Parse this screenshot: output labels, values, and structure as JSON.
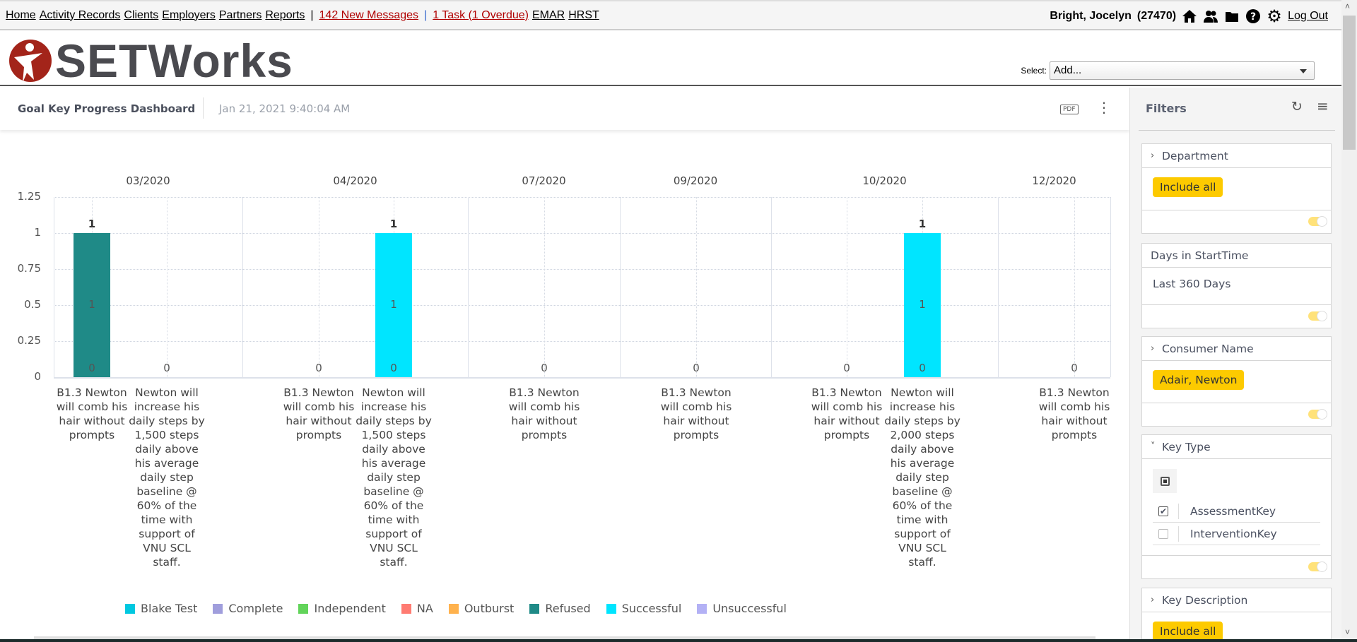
{
  "nav": {
    "links": [
      "Home",
      "Activity Records",
      "Clients",
      "Employers",
      "Partners",
      "Reports"
    ],
    "messages": "142 New Messages",
    "tasks": "1 Task (1 Overdue)",
    "extra_links": [
      "EMAR",
      "HRST"
    ],
    "user": "Bright, Jocelyn",
    "user_id": "(27470)",
    "logout": "Log Out"
  },
  "logo": {
    "text": "SETWorks"
  },
  "select": {
    "label": "Select:",
    "value": "Add..."
  },
  "dashboard": {
    "title": "Goal Key Progress Dashboard",
    "timestamp": "Jan 21, 2021 9:40:04 AM",
    "pdf_label": "PDF"
  },
  "chart_data": {
    "type": "bar",
    "ylim": [
      0,
      1.25
    ],
    "yticks": [
      "1.25",
      "1",
      "0.75",
      "0.5",
      "0.25",
      "0"
    ],
    "groups": [
      {
        "period": "03/2020",
        "bars": [
          {
            "label": "B1.3 Newton will comb his hair without prompts",
            "value": 1,
            "series": "Refused"
          },
          {
            "label": "Newton will increase his daily steps by 1,500 steps daily above his average daily step baseline @ 60% of the time with support of VNU SCL staff.",
            "value": 0,
            "series": null
          }
        ]
      },
      {
        "period": "04/2020",
        "bars": [
          {
            "label": "B1.3 Newton will comb his hair without prompts",
            "value": 0,
            "series": null
          },
          {
            "label": "Newton will increase his daily steps by 1,500 steps daily above his average daily step baseline @ 60% of the time with support of VNU SCL staff.",
            "value": 1,
            "series": "Successful"
          }
        ]
      },
      {
        "period": "07/2020",
        "bars": [
          {
            "label": "B1.3 Newton will comb his hair without prompts",
            "value": 0,
            "series": null
          }
        ]
      },
      {
        "period": "09/2020",
        "bars": [
          {
            "label": "B1.3 Newton will comb his hair without prompts",
            "value": 0,
            "series": null
          }
        ]
      },
      {
        "period": "10/2020",
        "bars": [
          {
            "label": "B1.3 Newton will comb his hair without prompts",
            "value": 0,
            "series": null
          },
          {
            "label": "Newton will increase his daily steps by 2,000 steps daily above his average daily step baseline @ 60% of the time with support of VNU SCL staff.",
            "value": 1,
            "series": "Successful"
          }
        ]
      },
      {
        "period": "12/2020",
        "bars": [
          {
            "label": "B1.3 Newton will comb his hair without prompts",
            "value": 0,
            "series": null
          }
        ]
      }
    ],
    "legend": [
      {
        "name": "Blake Test",
        "color": "#00c8e0"
      },
      {
        "name": "Complete",
        "color": "#a09edc"
      },
      {
        "name": "Independent",
        "color": "#62d45a"
      },
      {
        "name": "NA",
        "color": "#ff7b72"
      },
      {
        "name": "Outburst",
        "color": "#ffb24d"
      },
      {
        "name": "Refused",
        "color": "#1f8a87"
      },
      {
        "name": "Successful",
        "color": "#00e5ff"
      },
      {
        "name": "Unsuccessful",
        "color": "#b3b1f5"
      }
    ]
  },
  "filters": {
    "title": "Filters",
    "department": {
      "title": "Department",
      "chip": "Include all"
    },
    "days": {
      "title": "Days in StartTime",
      "value": "Last 360 Days"
    },
    "consumer": {
      "title": "Consumer Name",
      "chip": "Adair, Newton"
    },
    "keytype": {
      "title": "Key Type",
      "options": [
        {
          "label": "AssessmentKey",
          "checked": true
        },
        {
          "label": "InterventionKey",
          "checked": false
        }
      ]
    },
    "keydesc": {
      "title": "Key Description",
      "chip": "Include all"
    }
  }
}
